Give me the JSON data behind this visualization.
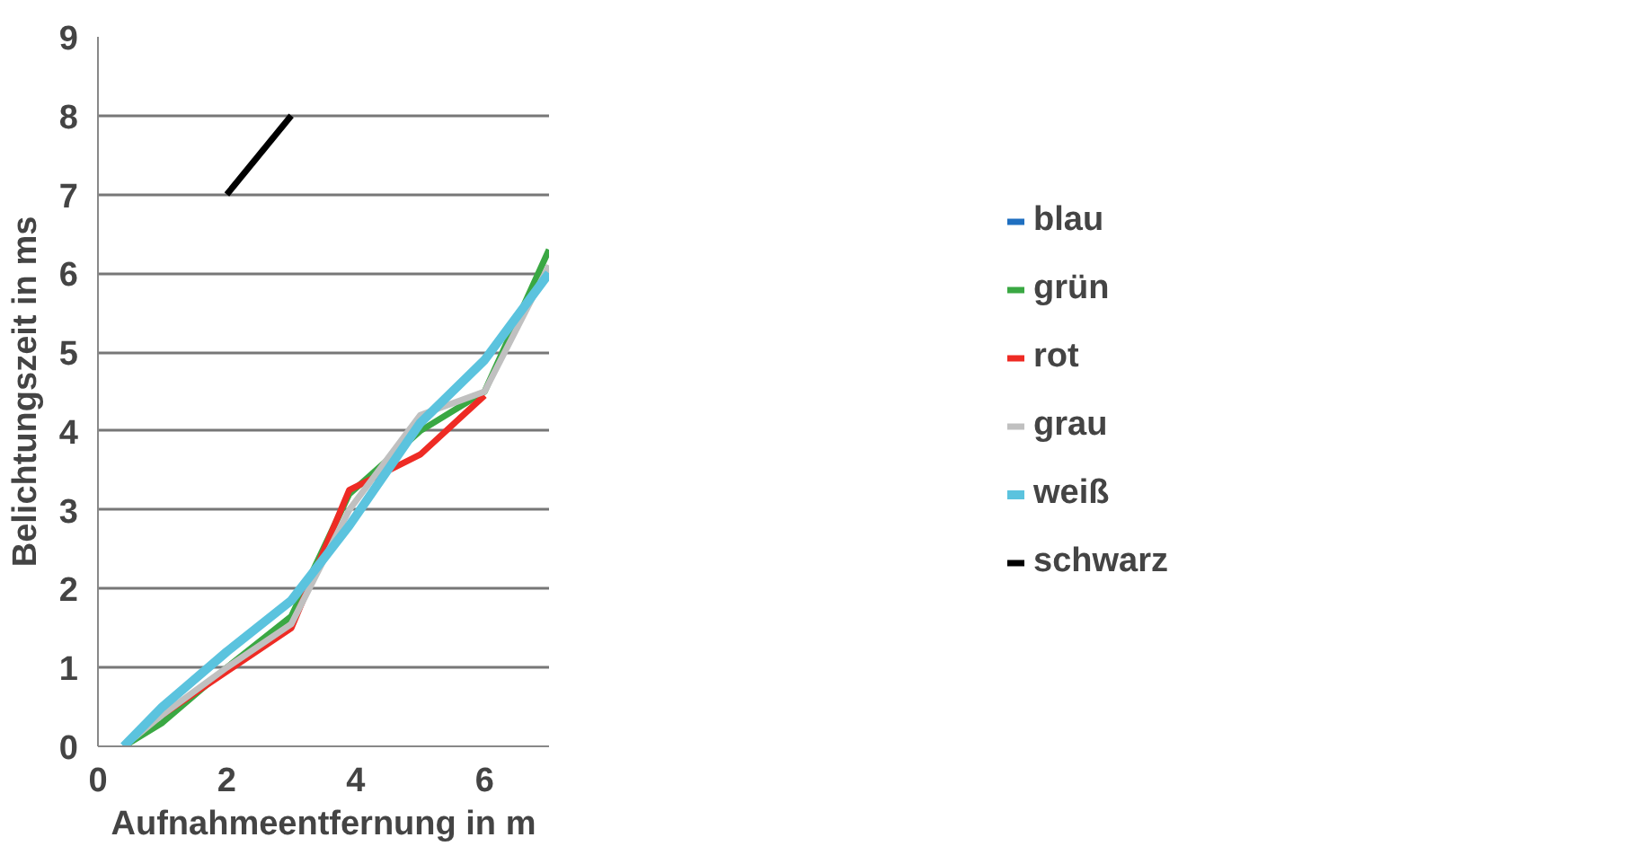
{
  "chart_data": {
    "type": "line",
    "xlabel": "Aufnahmeentfernung in m",
    "ylabel": "Belichtungszeit in ms",
    "x": [
      0.4,
      1,
      2,
      3,
      3.9,
      5,
      6,
      7
    ],
    "xlim": [
      0,
      7
    ],
    "xticks": [
      0,
      2,
      4,
      6
    ],
    "ylim": [
      0,
      9
    ],
    "yticks": [
      0,
      1,
      2,
      3,
      4,
      5,
      6,
      7,
      8,
      9
    ],
    "grid": "y",
    "legend": "right",
    "line_style": "solid",
    "marker": "none",
    "series": [
      {
        "name": "blau",
        "color": "#1f6fc0",
        "values": [
          null,
          null,
          null,
          null,
          null,
          null,
          null,
          null
        ]
      },
      {
        "name": "grün",
        "color": "#3aa843",
        "values": [
          0,
          0.3,
          1.0,
          1.65,
          3.2,
          4.0,
          4.5,
          6.3
        ]
      },
      {
        "name": "rot",
        "color": "#ee2b24",
        "values": [
          null,
          0.4,
          0.95,
          1.5,
          3.25,
          3.7,
          4.45,
          null
        ]
      },
      {
        "name": "grau",
        "color": "#c0c0c0",
        "values": [
          0,
          0.4,
          1.0,
          1.55,
          3.0,
          4.2,
          4.5,
          6.1
        ]
      },
      {
        "name": "weiß",
        "color": "#5bc3de",
        "values": [
          0,
          0.5,
          1.2,
          1.85,
          2.8,
          4.1,
          4.9,
          6.0
        ]
      },
      {
        "name": "schwarz",
        "color": "#000000",
        "x": [
          2,
          3
        ],
        "values": [
          7,
          8
        ]
      }
    ]
  }
}
